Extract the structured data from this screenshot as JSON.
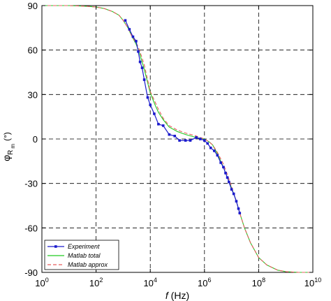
{
  "chart_data": {
    "type": "line",
    "title": "",
    "xlabel": {
      "italic": "f",
      "rest": " (Hz)"
    },
    "ylabel": {
      "base": "φ",
      "sub1": "R",
      "sub2": "m",
      "unit": "(°)"
    },
    "x_scale": "log10",
    "xlim": [
      1,
      10000000000
    ],
    "ylim": [
      -90,
      90
    ],
    "x_ticks": [
      {
        "base": "10",
        "exp": "0",
        "value": 1
      },
      {
        "base": "10",
        "exp": "2",
        "value": 100
      },
      {
        "base": "10",
        "exp": "4",
        "value": 10000
      },
      {
        "base": "10",
        "exp": "6",
        "value": 1000000
      },
      {
        "base": "10",
        "exp": "8",
        "value": 100000000
      },
      {
        "base": "10",
        "exp": "10",
        "value": 10000000000
      }
    ],
    "y_ticks": [
      "90",
      "60",
      "30",
      "0",
      "-30",
      "-60",
      "-90"
    ],
    "y_tick_values": [
      90,
      60,
      30,
      0,
      -30,
      -60,
      -90
    ],
    "grid": true,
    "legend_position": "bottom-left",
    "series": [
      {
        "name": "Experiment",
        "color": "#1a1acc",
        "marker": "square",
        "x": [
          1200,
          1700,
          2300,
          3000,
          3600,
          4200,
          5000,
          6000,
          8000,
          10000,
          14000,
          20000,
          30000,
          50000,
          80000,
          120000,
          200000,
          300000,
          500000,
          700000,
          1000000,
          1300000,
          1700000,
          2300000,
          3000000,
          4000000,
          5000000,
          6000000,
          7000000,
          8000000,
          10000000,
          12000000,
          15000000,
          18000000,
          20000000
        ],
        "y": [
          80,
          74,
          69,
          66,
          59,
          52,
          48,
          40,
          28,
          23,
          17,
          10,
          9,
          3,
          2,
          -1,
          -1,
          -1,
          1,
          0,
          -1,
          -3,
          -6,
          -8,
          -11,
          -16,
          -19,
          -23,
          -26,
          -29,
          -34,
          -37,
          -42,
          -47,
          -50
        ]
      },
      {
        "name": "Matlab total",
        "color": "#22cc22",
        "marker": "none",
        "x": [
          1,
          10,
          50,
          100,
          200,
          400,
          700,
          1000,
          1500,
          2000,
          3000,
          4000,
          6000,
          10000,
          15000,
          20000,
          30000,
          50000,
          100000,
          200000,
          500000,
          1000000,
          1500000,
          2000000,
          3000000,
          5000000,
          7000000,
          10000000,
          15000000,
          20000000,
          30000000,
          50000000,
          100000000,
          200000000,
          500000000,
          1000000000,
          3000000000,
          10000000000
        ],
        "y": [
          90,
          90,
          89.5,
          89,
          88,
          86,
          83.5,
          80,
          75,
          70,
          64,
          58,
          47,
          31,
          23,
          18,
          13,
          8,
          5,
          3,
          1,
          0,
          -2,
          -4,
          -10,
          -19,
          -26,
          -33,
          -42,
          -50,
          -60,
          -70,
          -80,
          -85,
          -88.5,
          -89.5,
          -90,
          -90
        ]
      },
      {
        "name": "Matlab approx",
        "color": "#e65c5c",
        "marker": "none",
        "x": [
          1,
          10,
          50,
          100,
          200,
          400,
          700,
          1000,
          1500,
          2000,
          3000,
          4000,
          6000,
          10000,
          15000,
          20000,
          30000,
          50000,
          100000,
          200000,
          500000,
          1000000,
          1500000,
          2000000,
          3000000,
          5000000,
          7000000,
          10000000,
          15000000,
          20000000,
          30000000,
          50000000,
          100000000,
          200000000,
          500000000,
          1000000000,
          3000000000,
          10000000000
        ],
        "y": [
          90,
          90,
          89.5,
          89,
          88,
          86,
          83.5,
          80,
          75,
          70,
          65,
          60,
          50,
          32,
          25,
          20,
          14,
          9,
          6,
          4,
          2,
          0,
          -2,
          -4,
          -9,
          -17,
          -24,
          -32,
          -42,
          -50,
          -60,
          -70,
          -80,
          -85,
          -88.5,
          -89.5,
          -90,
          -90
        ]
      }
    ]
  }
}
